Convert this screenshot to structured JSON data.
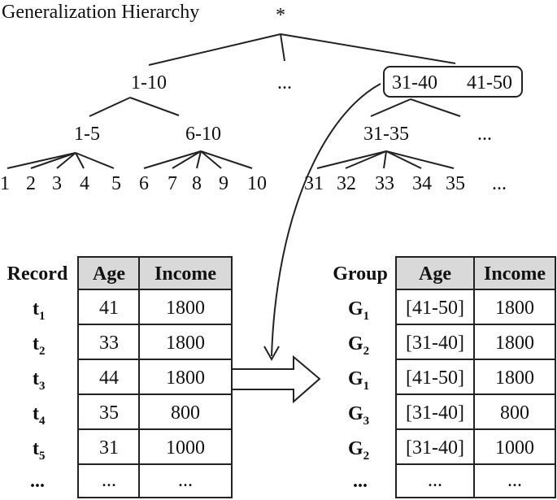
{
  "hierarchy": {
    "title": "Generalization Hierarchy",
    "root": "*",
    "level1": {
      "left": "1-10",
      "middle": "...",
      "box_left": "31-40",
      "box_right": "41-50"
    },
    "level2": {
      "a": "1-5",
      "b": "6-10",
      "c": "31-35",
      "d": "..."
    },
    "leaves": {
      "a": [
        "1",
        "2",
        "3",
        "4",
        "5"
      ],
      "b": [
        "6",
        "7",
        "8",
        "9",
        "10"
      ],
      "c": [
        "31",
        "32",
        "33",
        "34",
        "35"
      ],
      "more": "..."
    }
  },
  "original_table": {
    "headers": {
      "record": "Record",
      "age": "Age",
      "income": "Income"
    },
    "rows": [
      {
        "id": "t",
        "sub": "1",
        "age": "41",
        "income": "1800"
      },
      {
        "id": "t",
        "sub": "2",
        "age": "33",
        "income": "1800"
      },
      {
        "id": "t",
        "sub": "3",
        "age": "44",
        "income": "1800"
      },
      {
        "id": "t",
        "sub": "4",
        "age": "35",
        "income": "800"
      },
      {
        "id": "t",
        "sub": "5",
        "age": "31",
        "income": "1000"
      },
      {
        "id": "...",
        "sub": "",
        "age": "...",
        "income": "..."
      }
    ]
  },
  "generalized_table": {
    "headers": {
      "group": "Group",
      "age": "Age",
      "income": "Income"
    },
    "rows": [
      {
        "id": "G",
        "sub": "1",
        "age": "[41-50]",
        "income": "1800"
      },
      {
        "id": "G",
        "sub": "2",
        "age": "[31-40]",
        "income": "1800"
      },
      {
        "id": "G",
        "sub": "1",
        "age": "[41-50]",
        "income": "1800"
      },
      {
        "id": "G",
        "sub": "3",
        "age": "[31-40]",
        "income": "800"
      },
      {
        "id": "G",
        "sub": "2",
        "age": "[31-40]",
        "income": "1000"
      },
      {
        "id": "...",
        "sub": "",
        "age": "...",
        "income": "..."
      }
    ]
  }
}
